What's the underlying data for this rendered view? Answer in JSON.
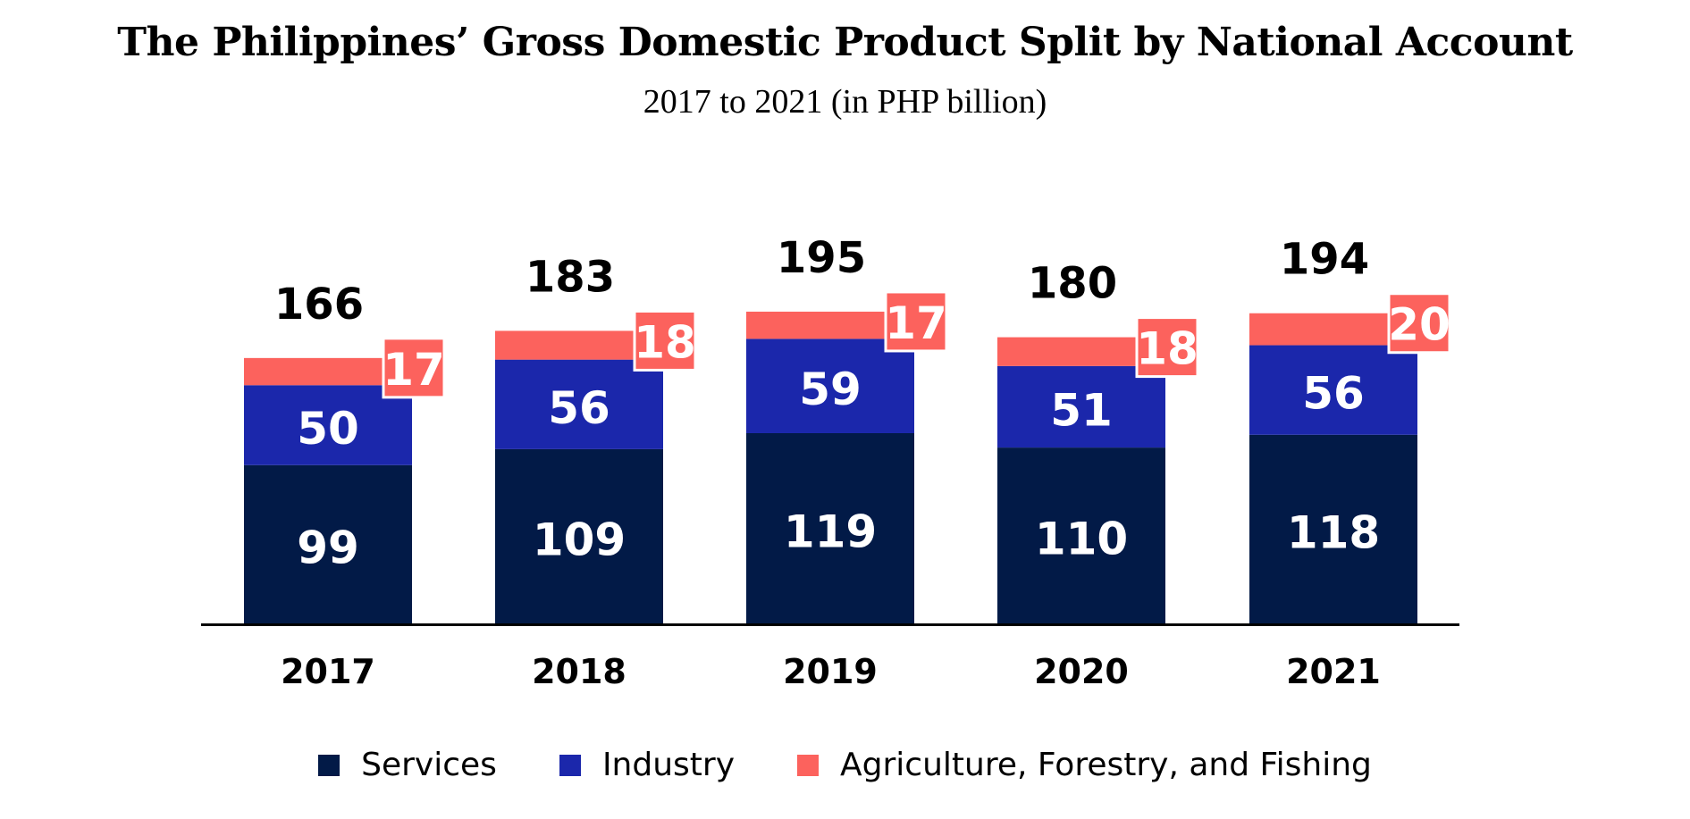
{
  "title": "The Philippines’ Gross Domestic Product Split by National Account",
  "subtitle": "2017 to 2021 (in PHP billion)",
  "chart_data": {
    "type": "bar",
    "stacked": true,
    "categories": [
      "2017",
      "2018",
      "2019",
      "2020",
      "2021"
    ],
    "series": [
      {
        "name": "Services",
        "values": [
          99,
          109,
          119,
          110,
          118
        ],
        "color": "#021a47"
      },
      {
        "name": "Industry",
        "values": [
          50,
          56,
          59,
          51,
          56
        ],
        "color": "#1b27ab"
      },
      {
        "name": "Agriculture, Forestry, and Fishing",
        "values": [
          17,
          18,
          17,
          18,
          20
        ],
        "color": "#fc625d"
      }
    ],
    "totals": [
      166,
      183,
      195,
      180,
      194
    ],
    "title": "The Philippines’ Gross Domestic Product Split by National Account",
    "subtitle": "2017 to 2021 (in PHP billion)",
    "xlabel": "",
    "ylabel": "",
    "grid": false,
    "legend": "bottom"
  }
}
